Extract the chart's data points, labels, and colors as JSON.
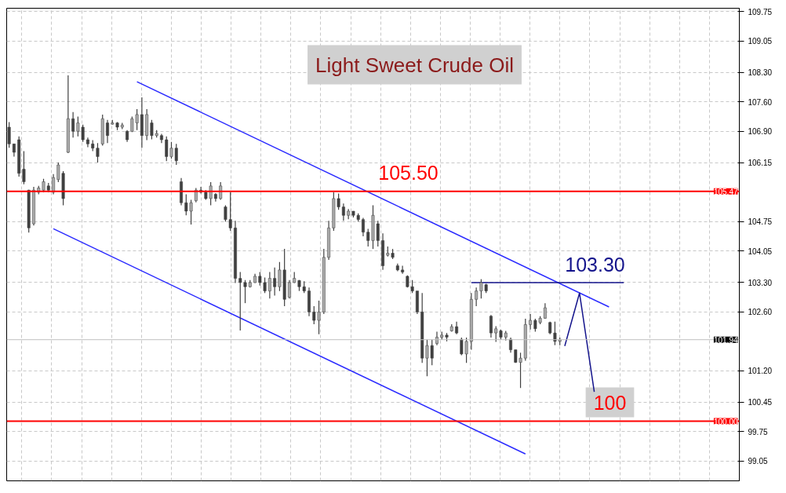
{
  "chart_data": {
    "type": "candlestick",
    "title": "Light Sweet Crude Oil",
    "color": "#404040",
    "categories": [
      null,
      null,
      null,
      null,
      null,
      null,
      null,
      null,
      null,
      null,
      null,
      null,
      null,
      null,
      null,
      null,
      null,
      null,
      null,
      null,
      null,
      null,
      null,
      null,
      null,
      null,
      null,
      null,
      null,
      null,
      null,
      null,
      null,
      null,
      null,
      null,
      null,
      null,
      null,
      null,
      null,
      null,
      null,
      null,
      null,
      null,
      null,
      null,
      null,
      null,
      null,
      null,
      null,
      null,
      null,
      null,
      null,
      null,
      null,
      null,
      null,
      null,
      null,
      null,
      null,
      null,
      null,
      null,
      null,
      null,
      null,
      null,
      null,
      null,
      null,
      null,
      null,
      null,
      null,
      null,
      null,
      null,
      null,
      null,
      null,
      null,
      null,
      null,
      null,
      null,
      null,
      null,
      null,
      null,
      null,
      null,
      null,
      null,
      null,
      null,
      null,
      null,
      null,
      null,
      null,
      null,
      null,
      null,
      null,
      null,
      null,
      null,
      null,
      null,
      null,
      null,
      null,
      null,
      null,
      null,
      null,
      null,
      null,
      null,
      null,
      null,
      null,
      null,
      null,
      null,
      null,
      null,
      null,
      null,
      null,
      null,
      null,
      null,
      null,
      null,
      null,
      null,
      null,
      null,
      null,
      null,
      null,
      null,
      null
    ],
    "ohlc": [
      [
        107.0,
        107.12,
        106.51,
        106.6
      ],
      [
        106.6,
        106.6,
        106.3,
        106.4
      ],
      [
        106.7,
        106.78,
        105.82,
        105.9
      ],
      [
        106.0,
        106.43,
        105.64,
        105.7
      ],
      [
        105.5,
        105.51,
        104.49,
        104.6
      ],
      [
        104.7,
        105.58,
        104.66,
        105.5
      ],
      [
        105.45,
        105.6,
        105.4,
        105.55
      ],
      [
        105.5,
        105.77,
        105.45,
        105.7
      ],
      [
        105.6,
        105.67,
        105.45,
        105.5
      ],
      [
        105.45,
        105.88,
        105.4,
        105.8
      ],
      [
        105.75,
        106.16,
        105.69,
        106.1
      ],
      [
        105.9,
        105.95,
        105.14,
        105.3
      ],
      [
        106.4,
        108.23,
        106.38,
        107.2
      ],
      [
        107.2,
        107.36,
        106.75,
        106.9
      ],
      [
        106.9,
        107.25,
        106.78,
        107.1
      ],
      [
        107.0,
        107.06,
        106.65,
        106.7
      ],
      [
        106.7,
        106.75,
        106.52,
        106.6
      ],
      [
        106.6,
        106.69,
        106.43,
        106.5
      ],
      [
        106.5,
        106.62,
        106.16,
        106.3
      ],
      [
        106.6,
        107.3,
        106.56,
        107.2
      ],
      [
        107.1,
        107.17,
        106.62,
        106.8
      ],
      [
        107.07,
        107.17,
        107.06,
        107.1
      ],
      [
        107.1,
        107.12,
        106.93,
        107.0
      ],
      [
        107.0,
        107.1,
        106.95,
        107.05
      ],
      [
        106.9,
        106.93,
        106.65,
        106.7
      ],
      [
        106.9,
        107.25,
        106.88,
        107.2
      ],
      [
        107.1,
        107.43,
        106.93,
        107.3
      ],
      [
        107.3,
        107.71,
        106.51,
        106.8
      ],
      [
        106.8,
        107.43,
        106.69,
        107.3
      ],
      [
        107.1,
        107.17,
        106.71,
        106.8
      ],
      [
        106.8,
        106.93,
        106.75,
        106.85
      ],
      [
        106.8,
        106.84,
        106.62,
        106.7
      ],
      [
        106.7,
        106.78,
        106.19,
        106.3
      ],
      [
        106.3,
        106.65,
        106.25,
        106.5
      ],
      [
        106.5,
        106.6,
        106.1,
        106.2
      ],
      [
        105.7,
        105.79,
        105.14,
        105.2
      ],
      [
        105.2,
        105.4,
        104.9,
        105.0
      ],
      [
        105.0,
        105.27,
        104.68,
        105.2
      ],
      [
        105.25,
        105.55,
        105.21,
        105.5
      ],
      [
        105.5,
        105.58,
        105.42,
        105.45
      ],
      [
        105.45,
        105.5,
        105.27,
        105.3
      ],
      [
        105.3,
        105.69,
        105.14,
        105.6
      ],
      [
        105.4,
        105.43,
        105.23,
        105.3
      ],
      [
        105.3,
        105.69,
        105.27,
        105.6
      ],
      [
        105.1,
        105.14,
        104.75,
        104.8
      ],
      [
        104.8,
        105.45,
        104.53,
        104.6
      ],
      [
        104.6,
        104.77,
        103.29,
        103.4
      ],
      [
        103.4,
        103.55,
        102.16,
        103.3
      ],
      [
        103.3,
        103.36,
        102.81,
        103.2
      ],
      [
        103.2,
        103.36,
        103.18,
        103.3
      ],
      [
        103.3,
        103.51,
        103.29,
        103.45
      ],
      [
        103.45,
        103.55,
        103.23,
        103.3
      ],
      [
        103.3,
        103.42,
        103.05,
        103.1
      ],
      [
        103.1,
        103.55,
        102.92,
        103.4
      ],
      [
        103.4,
        103.66,
        102.99,
        103.2
      ],
      [
        103.2,
        103.79,
        103.1,
        103.6
      ],
      [
        103.6,
        104.1,
        102.74,
        102.9
      ],
      [
        102.95,
        103.36,
        102.92,
        103.3
      ],
      [
        103.3,
        103.55,
        103.29,
        103.4
      ],
      [
        103.35,
        103.36,
        103.1,
        103.2
      ],
      [
        103.2,
        103.33,
        103.05,
        103.1
      ],
      [
        103.1,
        103.18,
        102.5,
        102.6
      ],
      [
        102.6,
        102.74,
        102.31,
        102.4
      ],
      [
        102.4,
        102.87,
        102.07,
        102.6
      ],
      [
        102.6,
        104.1,
        102.55,
        103.9
      ],
      [
        103.9,
        104.77,
        103.84,
        104.6
      ],
      [
        104.6,
        105.45,
        104.53,
        105.3
      ],
      [
        105.3,
        105.42,
        105.03,
        105.1
      ],
      [
        105.1,
        105.18,
        104.77,
        104.9
      ],
      [
        104.9,
        105.05,
        104.81,
        105.0
      ],
      [
        105.0,
        105.0,
        104.85,
        104.9
      ],
      [
        104.9,
        104.95,
        104.75,
        104.8
      ],
      [
        104.8,
        104.84,
        104.4,
        104.5
      ],
      [
        104.5,
        104.58,
        104.16,
        104.3
      ],
      [
        104.3,
        105.14,
        104.1,
        104.9
      ],
      [
        104.7,
        104.77,
        104.16,
        104.3
      ],
      [
        104.3,
        104.47,
        103.6,
        103.7
      ],
      [
        103.95,
        104.16,
        103.92,
        104.0
      ],
      [
        104.0,
        104.1,
        103.86,
        103.9
      ],
      [
        103.7,
        103.75,
        103.57,
        103.6
      ],
      [
        103.6,
        103.7,
        103.51,
        103.55
      ],
      [
        103.45,
        103.47,
        103.18,
        103.2
      ],
      [
        103.2,
        103.36,
        103.05,
        103.1
      ],
      [
        103.1,
        103.1,
        102.55,
        102.6
      ],
      [
        102.6,
        103.05,
        101.39,
        101.5
      ],
      [
        101.5,
        101.94,
        101.07,
        101.8
      ],
      [
        101.8,
        101.94,
        101.33,
        101.5
      ],
      [
        101.85,
        102.13,
        101.81,
        102.0
      ],
      [
        102.0,
        102.13,
        101.94,
        102.05
      ],
      [
        102.05,
        102.1,
        101.9,
        102.0
      ],
      [
        102.15,
        102.31,
        102.13,
        102.25
      ],
      [
        102.25,
        102.37,
        102.07,
        102.1
      ],
      [
        101.95,
        101.99,
        101.57,
        101.6
      ],
      [
        101.6,
        101.99,
        101.39,
        101.9
      ],
      [
        101.9,
        103.05,
        101.7,
        102.9
      ],
      [
        102.9,
        103.18,
        102.74,
        103.1
      ],
      [
        103.1,
        103.38,
        102.92,
        103.3
      ],
      [
        103.25,
        103.27,
        103.05,
        103.1
      ],
      [
        102.5,
        102.53,
        101.99,
        102.1
      ],
      [
        102.1,
        102.26,
        101.89,
        102.2
      ],
      [
        102.15,
        102.18,
        101.94,
        102.0
      ],
      [
        102.0,
        102.15,
        101.92,
        102.1
      ],
      [
        101.95,
        101.99,
        101.63,
        101.7
      ],
      [
        101.7,
        101.7,
        101.39,
        101.4
      ],
      [
        101.4,
        101.63,
        100.79,
        101.5
      ],
      [
        101.5,
        102.44,
        101.44,
        102.3
      ],
      [
        102.3,
        102.55,
        102.18,
        102.4
      ],
      [
        102.4,
        102.44,
        102.13,
        102.2
      ],
      [
        102.35,
        102.5,
        102.31,
        102.45
      ],
      [
        102.45,
        102.81,
        102.44,
        102.7
      ],
      [
        102.35,
        102.37,
        102.07,
        102.1
      ],
      [
        102.1,
        102.37,
        101.81,
        101.9
      ],
      [
        101.9,
        101.99,
        101.81,
        101.94
      ],
      null,
      null,
      null,
      null,
      null,
      null,
      null,
      null,
      null,
      null,
      null,
      null,
      null,
      null,
      null,
      null,
      null,
      null,
      null,
      null,
      null,
      null,
      null,
      null,
      null,
      null,
      null,
      null,
      null,
      null,
      null,
      null,
      null,
      null,
      null,
      null
    ],
    "series": [
      {
        "type": "line",
        "color": "#2b2bff",
        "values": [
          null,
          null,
          null,
          null,
          null,
          null,
          null,
          null,
          null,
          null,
          null,
          null,
          null,
          null,
          null,
          null,
          null,
          null,
          null,
          null,
          null,
          null,
          null,
          null,
          null,
          null,
          108.08,
          null,
          null,
          null,
          null,
          null,
          null,
          null,
          null,
          null,
          null,
          null,
          null,
          null,
          null,
          null,
          null,
          null,
          null,
          null,
          null,
          null,
          null,
          null,
          null,
          null,
          null,
          null,
          null,
          null,
          null,
          null,
          null,
          null,
          null,
          null,
          null,
          null,
          null,
          null,
          null,
          null,
          null,
          null,
          null,
          null,
          null,
          null,
          null,
          null,
          null,
          null,
          null,
          null,
          null,
          null,
          null,
          null,
          null,
          null,
          null,
          null,
          null,
          null,
          null,
          null,
          null,
          null,
          null,
          null,
          null,
          null,
          null,
          null,
          null,
          null,
          null,
          null,
          null,
          null,
          null,
          null,
          null,
          null,
          null,
          null,
          null,
          null,
          null,
          null,
          null,
          null,
          null,
          null,
          null,
          null,
          102.72,
          null,
          null,
          null,
          null,
          null,
          null,
          null,
          null,
          null,
          null,
          null,
          null,
          null,
          null,
          null,
          null,
          null,
          null,
          null,
          null,
          null,
          null,
          null,
          null,
          null,
          null
        ]
      },
      {
        "type": "line",
        "color": "#2b2bff",
        "values": [
          null,
          null,
          null,
          null,
          null,
          null,
          null,
          null,
          null,
          104.58,
          null,
          null,
          null,
          null,
          null,
          null,
          null,
          null,
          null,
          null,
          null,
          null,
          null,
          null,
          null,
          null,
          null,
          null,
          null,
          null,
          null,
          null,
          null,
          null,
          null,
          null,
          null,
          null,
          null,
          null,
          null,
          null,
          null,
          null,
          null,
          null,
          null,
          null,
          null,
          null,
          null,
          null,
          null,
          null,
          null,
          null,
          null,
          null,
          null,
          null,
          null,
          null,
          null,
          null,
          null,
          null,
          null,
          null,
          null,
          null,
          null,
          null,
          null,
          null,
          null,
          null,
          null,
          null,
          null,
          null,
          null,
          null,
          null,
          null,
          null,
          null,
          null,
          null,
          null,
          null,
          null,
          null,
          null,
          null,
          null,
          null,
          null,
          null,
          null,
          null,
          null,
          null,
          null,
          null,
          null,
          99.22,
          null,
          null,
          null,
          null,
          null,
          null,
          null,
          null,
          null,
          null,
          null,
          null,
          null,
          null,
          null,
          null,
          null,
          null,
          null,
          null,
          null,
          null,
          null,
          null,
          null,
          null,
          null,
          null,
          null,
          null,
          null,
          null,
          null,
          null,
          null,
          null,
          null,
          null,
          null,
          null,
          null,
          null,
          null
        ]
      },
      {
        "type": "line",
        "color": "#14148c",
        "values": [
          null,
          null,
          null,
          null,
          null,
          null,
          null,
          null,
          null,
          null,
          null,
          null,
          null,
          null,
          null,
          null,
          null,
          null,
          null,
          null,
          null,
          null,
          null,
          null,
          null,
          null,
          null,
          null,
          null,
          null,
          null,
          null,
          null,
          null,
          null,
          null,
          null,
          null,
          null,
          null,
          null,
          null,
          null,
          null,
          null,
          null,
          null,
          null,
          null,
          null,
          null,
          null,
          null,
          null,
          null,
          null,
          null,
          null,
          null,
          null,
          null,
          null,
          null,
          null,
          null,
          null,
          null,
          null,
          null,
          null,
          null,
          null,
          null,
          null,
          null,
          null,
          null,
          null,
          null,
          null,
          null,
          null,
          null,
          null,
          null,
          null,
          null,
          null,
          null,
          null,
          null,
          null,
          null,
          null,
          103.3,
          null,
          null,
          null,
          null,
          null,
          null,
          null,
          null,
          null,
          null,
          null,
          null,
          null,
          null,
          null,
          null,
          null,
          null,
          null,
          null,
          null,
          null,
          null,
          null,
          null,
          null,
          null,
          null,
          null,
          null,
          103.3,
          null,
          null,
          null,
          null,
          null,
          null,
          null,
          null,
          null,
          null,
          null,
          null,
          null,
          null,
          null,
          null,
          null,
          null,
          null,
          null,
          null,
          null,
          null
        ]
      },
      {
        "type": "line",
        "color": "#14148c",
        "values": [
          null,
          null,
          null,
          null,
          null,
          null,
          null,
          null,
          null,
          null,
          null,
          null,
          null,
          null,
          null,
          null,
          null,
          null,
          null,
          null,
          null,
          null,
          null,
          null,
          null,
          null,
          null,
          null,
          null,
          null,
          null,
          null,
          null,
          null,
          null,
          null,
          null,
          null,
          null,
          null,
          null,
          null,
          null,
          null,
          null,
          null,
          null,
          null,
          null,
          null,
          null,
          null,
          null,
          null,
          null,
          null,
          null,
          null,
          null,
          null,
          null,
          null,
          null,
          null,
          null,
          null,
          null,
          null,
          null,
          null,
          null,
          null,
          null,
          null,
          null,
          null,
          null,
          null,
          null,
          null,
          null,
          null,
          null,
          null,
          null,
          null,
          null,
          null,
          null,
          null,
          null,
          null,
          null,
          null,
          null,
          null,
          null,
          null,
          null,
          null,
          null,
          null,
          null,
          null,
          null,
          null,
          null,
          null,
          null,
          null,
          null,
          null,
          null,
          101.79,
          null,
          null,
          103.05,
          null,
          null,
          100.7,
          null,
          null,
          null,
          null,
          null,
          null,
          null,
          null,
          null,
          null,
          null,
          null,
          null,
          null,
          null,
          null,
          null,
          null,
          null,
          null,
          null,
          null,
          null,
          null,
          null,
          null,
          null,
          null,
          null
        ]
      }
    ],
    "ref_lines": [
      {
        "axis": "y",
        "value": 105.47,
        "label": "105.47",
        "color": "#ff0000"
      },
      {
        "axis": "y",
        "value": 101.94,
        "label": "101.94",
        "color": "#c0c0c0"
      },
      {
        "axis": "y",
        "value": 100.0,
        "label": "100.00",
        "color": "#ff0000"
      }
    ],
    "annotations": [
      "105.50",
      "103.30",
      "100"
    ],
    "ylim": [
      98.58,
      109.83
    ],
    "yticks": [
      {
        "value": 99.05,
        "label": "99.05"
      },
      {
        "value": 99.75,
        "label": "99.75"
      },
      {
        "value": 100.45,
        "label": "100.45"
      },
      {
        "value": 101.2,
        "label": "101.20"
      },
      {
        "value": 102.6,
        "label": "102.60"
      },
      {
        "value": 103.3,
        "label": "103.30"
      },
      {
        "value": 104.05,
        "label": "104.05"
      },
      {
        "value": 104.75,
        "label": "104.75"
      },
      {
        "value": 106.15,
        "label": "106.15"
      },
      {
        "value": 106.9,
        "label": "106.90"
      },
      {
        "value": 107.6,
        "label": "107.60"
      },
      {
        "value": 108.3,
        "label": "108.30"
      },
      {
        "value": 109.05,
        "label": "109.05"
      },
      {
        "value": 109.75,
        "label": "109.75"
      }
    ],
    "tick_labels": "y",
    "grid": true
  }
}
